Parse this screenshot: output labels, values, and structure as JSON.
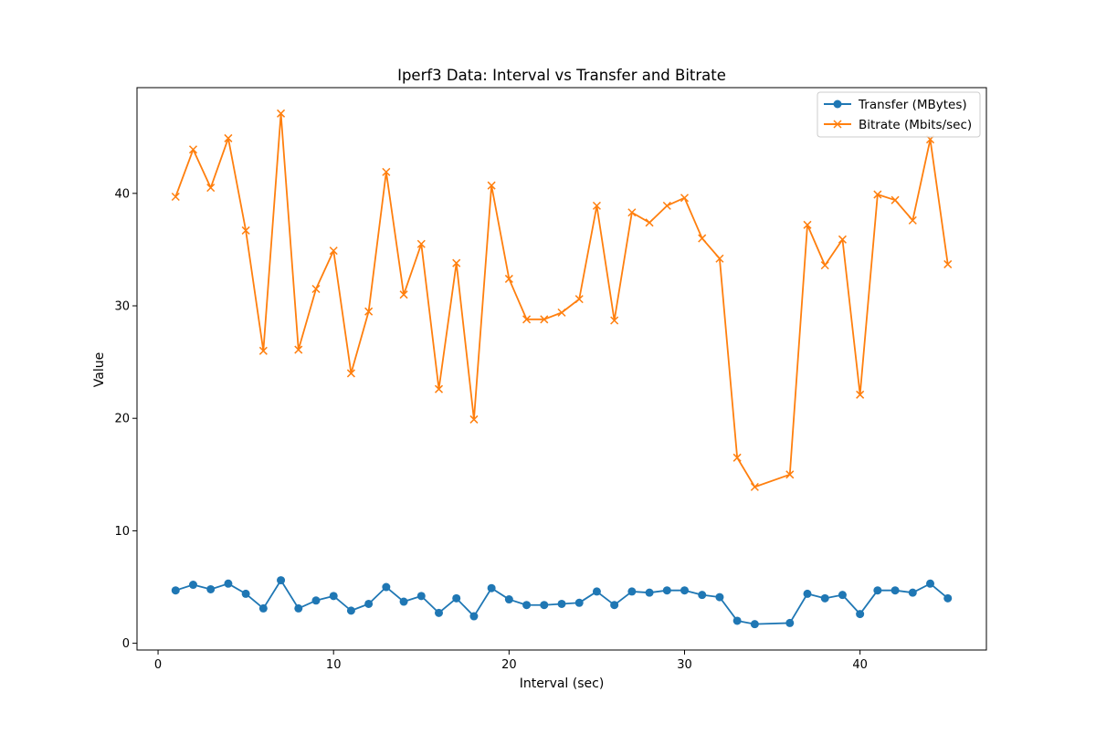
{
  "chart_data": {
    "type": "line",
    "title": "Iperf3 Data: Interval vs Transfer and Bitrate",
    "xlabel": "Interval (sec)",
    "ylabel": "Value",
    "xlim": [
      -1.2,
      47.2
    ],
    "ylim": [
      -0.6,
      49.4
    ],
    "xticks": [
      0,
      10,
      20,
      30,
      40
    ],
    "yticks": [
      0,
      10,
      20,
      30,
      40
    ],
    "grid": false,
    "legend_position": "top-right",
    "x": [
      1,
      2,
      3,
      4,
      5,
      6,
      7,
      8,
      9,
      10,
      11,
      12,
      13,
      14,
      15,
      16,
      17,
      18,
      19,
      20,
      21,
      22,
      23,
      24,
      25,
      26,
      27,
      28,
      29,
      30,
      31,
      32,
      33,
      34,
      36,
      37,
      38,
      39,
      40,
      41,
      42,
      43,
      44,
      45
    ],
    "series": [
      {
        "name": "Transfer (MBytes)",
        "color": "#1f77b4",
        "marker": "circle",
        "values": [
          4.7,
          5.2,
          4.8,
          5.3,
          4.4,
          3.1,
          5.6,
          3.1,
          3.8,
          4.2,
          2.9,
          3.5,
          5.0,
          3.7,
          4.2,
          2.7,
          4.0,
          2.4,
          4.9,
          3.9,
          3.4,
          3.4,
          3.5,
          3.6,
          4.6,
          3.4,
          4.6,
          4.5,
          4.7,
          4.7,
          4.3,
          4.1,
          2.0,
          1.7,
          1.8,
          4.4,
          4.0,
          4.3,
          2.6,
          4.7,
          4.7,
          4.5,
          5.3,
          4.0
        ]
      },
      {
        "name": "Bitrate (Mbits/sec)",
        "color": "#ff7f0e",
        "marker": "x",
        "values": [
          39.7,
          43.9,
          40.5,
          44.9,
          36.7,
          26.0,
          47.1,
          26.1,
          31.5,
          34.9,
          24.0,
          29.5,
          41.9,
          31.0,
          35.5,
          22.6,
          33.8,
          19.9,
          40.7,
          32.4,
          28.8,
          28.8,
          29.4,
          30.6,
          38.9,
          28.7,
          38.3,
          37.4,
          38.9,
          39.6,
          36.0,
          34.2,
          16.5,
          13.9,
          15.0,
          37.2,
          33.6,
          35.9,
          22.1,
          39.9,
          39.4,
          37.6,
          44.8,
          33.7
        ]
      }
    ]
  }
}
